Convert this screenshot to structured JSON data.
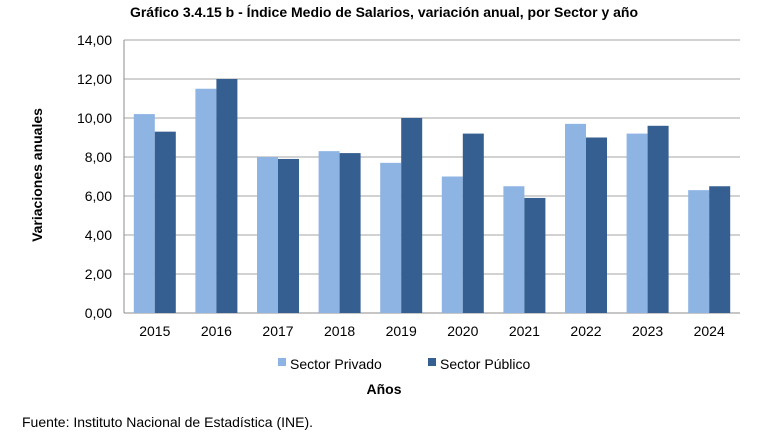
{
  "chart_data": {
    "type": "bar",
    "title": "Gráfico 3.4.15 b - Índice Medio de Salarios, variación anual, por Sector y año",
    "xlabel": "Años",
    "ylabel": "Variaciones anuales",
    "ylim": [
      0,
      14
    ],
    "ytick_step": 2,
    "ytick_labels": [
      "0,00",
      "2,00",
      "4,00",
      "6,00",
      "8,00",
      "10,00",
      "12,00",
      "14,00"
    ],
    "grid": true,
    "legend_position": "bottom",
    "categories": [
      "2015",
      "2016",
      "2017",
      "2018",
      "2019",
      "2020",
      "2021",
      "2022",
      "2023",
      "2024"
    ],
    "series": [
      {
        "name": "Sector Privado",
        "color": "#8db4e3",
        "values": [
          10.2,
          11.5,
          8.0,
          8.3,
          7.7,
          7.0,
          6.5,
          9.7,
          9.2,
          6.3
        ]
      },
      {
        "name": "Sector Público",
        "color": "#355e91",
        "values": [
          9.3,
          12.0,
          7.9,
          8.2,
          10.0,
          9.2,
          5.9,
          9.0,
          9.6,
          6.5
        ]
      }
    ]
  },
  "source_note": "Fuente: Instituto Nacional de Estadística (INE)."
}
